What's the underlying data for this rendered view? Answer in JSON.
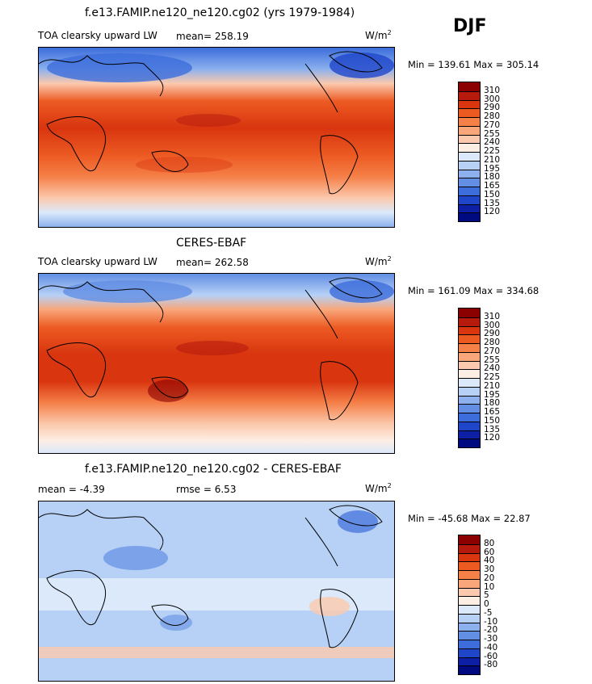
{
  "season": "DJF",
  "panels": [
    {
      "title": "f.e13.FAMIP.ne120_ne120.cg02 (yrs 1979-1984)",
      "left_label": "TOA clearsky upward LW",
      "center_label": "mean=  258.19",
      "units_base": "W/m",
      "units_exp": "2",
      "minmax": "Min = 139.61  Max = 305.14",
      "colorbar_labels": [
        "310",
        "300",
        "290",
        "280",
        "270",
        "255",
        "240",
        "225",
        "210",
        "195",
        "180",
        "165",
        "150",
        "135",
        "120"
      ],
      "colorbar_colors": [
        "#8b0000",
        "#b51a0d",
        "#d9350f",
        "#ec5a22",
        "#f58048",
        "#f9a67a",
        "#fbc9ad",
        "#fdeee4",
        "#dbe9fb",
        "#b7d1f6",
        "#8cb1ee",
        "#628fe4",
        "#3c6ddb",
        "#1f46c9",
        "#0d1fa5",
        "#000a80"
      ]
    },
    {
      "title": "CERES-EBAF",
      "left_label": "TOA clearsky upward LW",
      "center_label": "mean=  262.58",
      "units_base": "W/m",
      "units_exp": "2",
      "minmax": "Min = 161.09  Max = 334.68",
      "colorbar_labels": [
        "310",
        "300",
        "290",
        "280",
        "270",
        "255",
        "240",
        "225",
        "210",
        "195",
        "180",
        "165",
        "150",
        "135",
        "120"
      ],
      "colorbar_colors": [
        "#8b0000",
        "#b51a0d",
        "#d9350f",
        "#ec5a22",
        "#f58048",
        "#f9a67a",
        "#fbc9ad",
        "#fdeee4",
        "#dbe9fb",
        "#b7d1f6",
        "#8cb1ee",
        "#628fe4",
        "#3c6ddb",
        "#1f46c9",
        "#0d1fa5",
        "#000a80"
      ]
    },
    {
      "title": "f.e13.FAMIP.ne120_ne120.cg02 - CERES-EBAF",
      "left_label": "mean =   -4.39",
      "center_label": "rmse =    6.53",
      "units_base": "W/m",
      "units_exp": "2",
      "minmax": "Min = -45.68  Max =  22.87",
      "colorbar_labels": [
        "80",
        "60",
        "40",
        "30",
        "20",
        "10",
        "5",
        "0",
        "-5",
        "-10",
        "-20",
        "-30",
        "-40",
        "-60",
        "-80"
      ],
      "colorbar_colors": [
        "#8b0000",
        "#b51a0d",
        "#d9350f",
        "#ec5a22",
        "#f58048",
        "#f9a67a",
        "#fbc9ad",
        "#fdeee4",
        "#dbe9fb",
        "#b7d1f6",
        "#8cb1ee",
        "#628fe4",
        "#3c6ddb",
        "#1f46c9",
        "#0d1fa5",
        "#000a80"
      ]
    }
  ]
}
